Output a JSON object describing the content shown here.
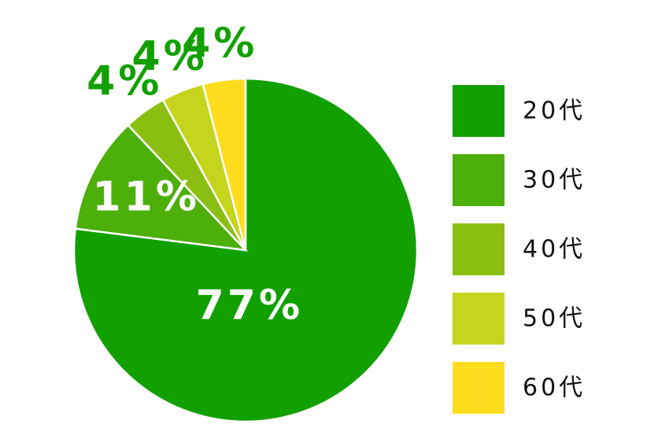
{
  "chart_data": {
    "type": "pie",
    "categories": [
      "20代",
      "30代",
      "40代",
      "50代",
      "60代"
    ],
    "values": [
      77,
      11,
      4,
      4,
      4
    ],
    "value_labels": [
      "77%",
      "11%",
      "4%",
      "4%",
      "4%"
    ],
    "colors": [
      "#12a000",
      "#4caf0a",
      "#8abf12",
      "#c5d41c",
      "#fedd1f"
    ],
    "legend": "right"
  }
}
